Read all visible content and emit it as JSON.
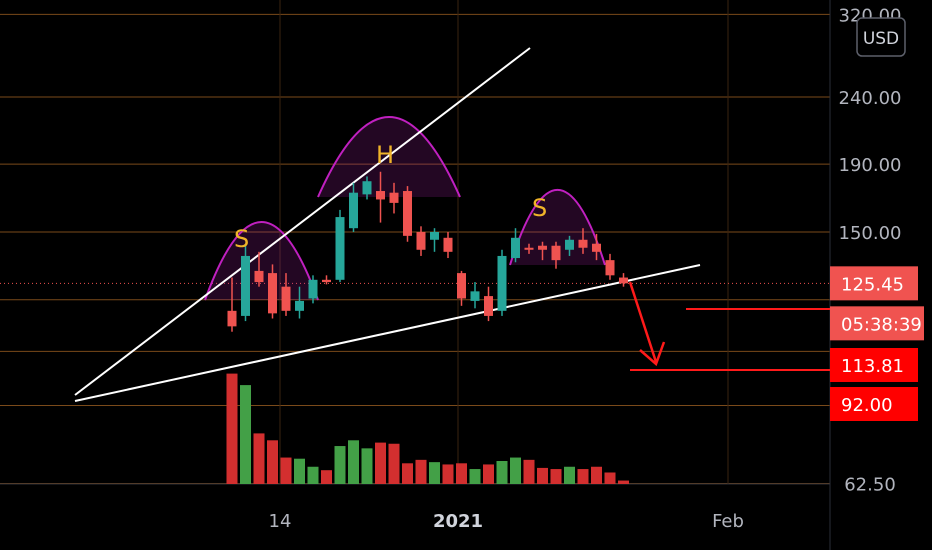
{
  "currency": "USD",
  "chart_data": {
    "type": "candlestick",
    "price_axis": {
      "ticks": [
        {
          "label": "320.00",
          "value": 320
        },
        {
          "label": "240.00",
          "value": 240
        },
        {
          "label": "190.00",
          "value": 190
        },
        {
          "label": "150.00",
          "value": 150
        },
        {
          "label": "62.50",
          "value": 62.5
        }
      ],
      "scale": "log"
    },
    "time_axis": {
      "ticks": [
        {
          "label": "14",
          "bold": false
        },
        {
          "label": "2021",
          "bold": true
        },
        {
          "label": "Feb",
          "bold": false
        }
      ]
    },
    "price_labels": [
      {
        "label": "125.45",
        "value": 125.45,
        "kind": "last-price",
        "color": "#f05350"
      },
      {
        "label": "05:38:39",
        "kind": "countdown",
        "color": "#f05350"
      },
      {
        "label": "113.81",
        "value": 113.81,
        "kind": "target-level",
        "color": "#ff0000"
      },
      {
        "label": "92.00",
        "value": 92.0,
        "kind": "target-level",
        "color": "#ff0000"
      }
    ],
    "candles": [
      {
        "o": 114,
        "h": 128,
        "l": 106,
        "c": 108,
        "v": 0.96
      },
      {
        "o": 112,
        "h": 143,
        "l": 110,
        "c": 138,
        "v": 0.86
      },
      {
        "o": 131,
        "h": 140,
        "l": 124,
        "c": 126,
        "v": 0.44
      },
      {
        "o": 130,
        "h": 134,
        "l": 111,
        "c": 113,
        "v": 0.38
      },
      {
        "o": 124,
        "h": 130,
        "l": 112,
        "c": 114,
        "v": 0.23
      },
      {
        "o": 114,
        "h": 124,
        "l": 111,
        "c": 118,
        "v": 0.22
      },
      {
        "o": 119,
        "h": 129,
        "l": 117,
        "c": 127,
        "v": 0.15
      },
      {
        "o": 127,
        "h": 129,
        "l": 125,
        "c": 126,
        "v": 0.12
      },
      {
        "o": 127,
        "h": 162,
        "l": 126,
        "c": 158,
        "v": 0.33
      },
      {
        "o": 152,
        "h": 178,
        "l": 150,
        "c": 172,
        "v": 0.38
      },
      {
        "o": 171,
        "h": 182,
        "l": 168,
        "c": 179,
        "v": 0.31
      },
      {
        "o": 173,
        "h": 185,
        "l": 155,
        "c": 168,
        "v": 0.36
      },
      {
        "o": 172,
        "h": 178,
        "l": 160,
        "c": 166,
        "v": 0.35
      },
      {
        "o": 173,
        "h": 176,
        "l": 145,
        "c": 148,
        "v": 0.18
      },
      {
        "o": 150,
        "h": 153,
        "l": 138,
        "c": 141,
        "v": 0.21
      },
      {
        "o": 146,
        "h": 152,
        "l": 140,
        "c": 150,
        "v": 0.19
      },
      {
        "o": 147,
        "h": 150,
        "l": 137,
        "c": 140,
        "v": 0.17
      },
      {
        "o": 130,
        "h": 131,
        "l": 116,
        "c": 119,
        "v": 0.18
      },
      {
        "o": 118,
        "h": 126,
        "l": 115,
        "c": 122,
        "v": 0.13
      },
      {
        "o": 120,
        "h": 124,
        "l": 110,
        "c": 112,
        "v": 0.17
      },
      {
        "o": 114,
        "h": 141,
        "l": 112,
        "c": 138,
        "v": 0.2
      },
      {
        "o": 137,
        "h": 152,
        "l": 135,
        "c": 147,
        "v": 0.23
      },
      {
        "o": 142,
        "h": 144,
        "l": 139,
        "c": 141,
        "v": 0.21
      },
      {
        "o": 143,
        "h": 145,
        "l": 136,
        "c": 141,
        "v": 0.14
      },
      {
        "o": 143,
        "h": 145,
        "l": 132,
        "c": 136,
        "v": 0.13
      },
      {
        "o": 141,
        "h": 148,
        "l": 138,
        "c": 146,
        "v": 0.15
      },
      {
        "o": 146,
        "h": 152,
        "l": 139,
        "c": 142,
        "v": 0.13
      },
      {
        "o": 144,
        "h": 149,
        "l": 136,
        "c": 140,
        "v": 0.15
      },
      {
        "o": 136,
        "h": 139,
        "l": 127,
        "c": 129,
        "v": 0.1
      },
      {
        "o": 128,
        "h": 130,
        "l": 124,
        "c": 125.45,
        "v": 0.03
      }
    ],
    "annotations": {
      "labels": [
        "S",
        "H",
        "S"
      ],
      "pattern": "head-and-shoulders"
    },
    "colors": {
      "up": "#26a69a",
      "down": "#ef5350",
      "volume_up": "#43a047",
      "volume_down": "#d32f2f",
      "grid": "#7a4a1a",
      "hump": "#c020c0",
      "trendline": "#ffffff",
      "target": "#ff1a1a"
    }
  }
}
